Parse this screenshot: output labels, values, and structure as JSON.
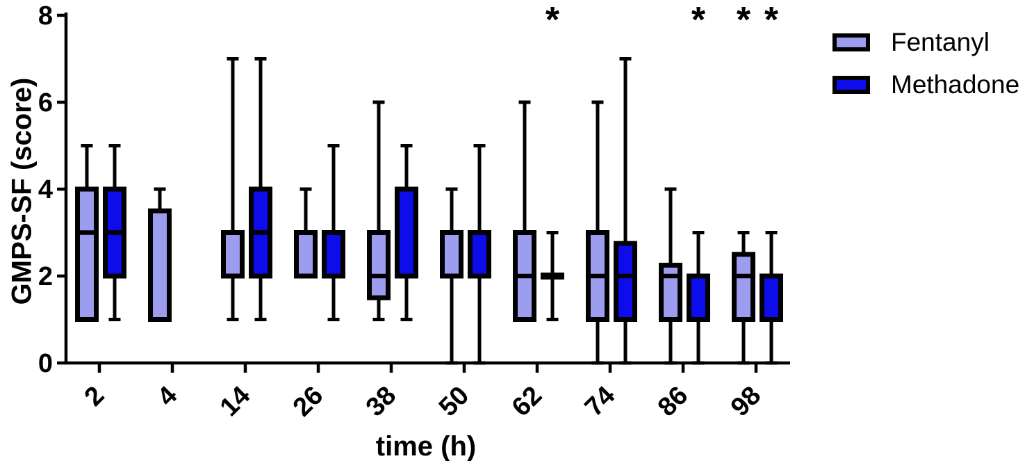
{
  "chart_data": {
    "type": "boxplot",
    "title": "",
    "xlabel": "time (h)",
    "ylabel": "GMPS-SF (score)",
    "ylim": [
      0,
      8
    ],
    "yticks": [
      0,
      2,
      4,
      6,
      8
    ],
    "grid": false,
    "legend_position": "top-right",
    "categories": [
      "2",
      "4",
      "14",
      "26",
      "38",
      "50",
      "62",
      "74",
      "86",
      "98"
    ],
    "series": [
      {
        "name": "Fentanyl",
        "color": "#9D9DF0",
        "boxes": [
          {
            "min": 1,
            "q1": 1,
            "median": 3,
            "q3": 4,
            "max": 5
          },
          {
            "min": 1,
            "q1": 1,
            "median": null,
            "q3": 3.5,
            "max": 4
          },
          {
            "min": 1,
            "q1": 2,
            "median": null,
            "q3": 3,
            "max": 7
          },
          {
            "min": 2,
            "q1": 2,
            "median": null,
            "q3": 3,
            "max": 4
          },
          {
            "min": 1,
            "q1": 1.5,
            "median": 2,
            "q3": 3,
            "max": 6
          },
          {
            "min": 0,
            "q1": 2,
            "median": null,
            "q3": 3,
            "max": 4
          },
          {
            "min": 1,
            "q1": 1,
            "median": 2,
            "q3": 3,
            "max": 6
          },
          {
            "min": 0,
            "q1": 1,
            "median": 2,
            "q3": 3,
            "max": 6
          },
          {
            "min": 0,
            "q1": 1,
            "median": 2,
            "q3": 2.25,
            "max": 4
          },
          {
            "min": 0,
            "q1": 1,
            "median": 2,
            "q3": 2.5,
            "max": 3
          }
        ]
      },
      {
        "name": "Methadone",
        "color": "#0D0DEB",
        "boxes": [
          {
            "min": 1,
            "q1": 2,
            "median": 3,
            "q3": 4,
            "max": 5
          },
          null,
          {
            "min": 1,
            "q1": 2,
            "median": 3,
            "q3": 4,
            "max": 7
          },
          {
            "min": 1,
            "q1": 2,
            "median": null,
            "q3": 3,
            "max": 5
          },
          {
            "min": 1,
            "q1": 2,
            "median": null,
            "q3": 4,
            "max": 5
          },
          {
            "min": 0,
            "q1": 2,
            "median": null,
            "q3": 3,
            "max": 5
          },
          {
            "min": 1,
            "q1": 2,
            "median": 2,
            "q3": 2,
            "max": 3
          },
          {
            "min": 0,
            "q1": 1,
            "median": 2,
            "q3": 2.75,
            "max": 7
          },
          {
            "min": 0,
            "q1": 1,
            "median": null,
            "q3": 2,
            "max": 3
          },
          {
            "min": 0,
            "q1": 1,
            "median": null,
            "q3": 2,
            "max": 3
          }
        ]
      }
    ],
    "annotations": [
      {
        "symbol": "*",
        "category": "62",
        "series": "Methadone"
      },
      {
        "symbol": "*",
        "category": "86",
        "series": "Methadone"
      },
      {
        "symbol": "*",
        "category": "98",
        "series": "Fentanyl"
      },
      {
        "symbol": "*",
        "category": "98",
        "series": "Methadone"
      }
    ]
  },
  "legend": {
    "items": [
      {
        "label": "Fentanyl",
        "color": "#9D9DF0"
      },
      {
        "label": "Methadone",
        "color": "#0D0DEB"
      }
    ]
  }
}
